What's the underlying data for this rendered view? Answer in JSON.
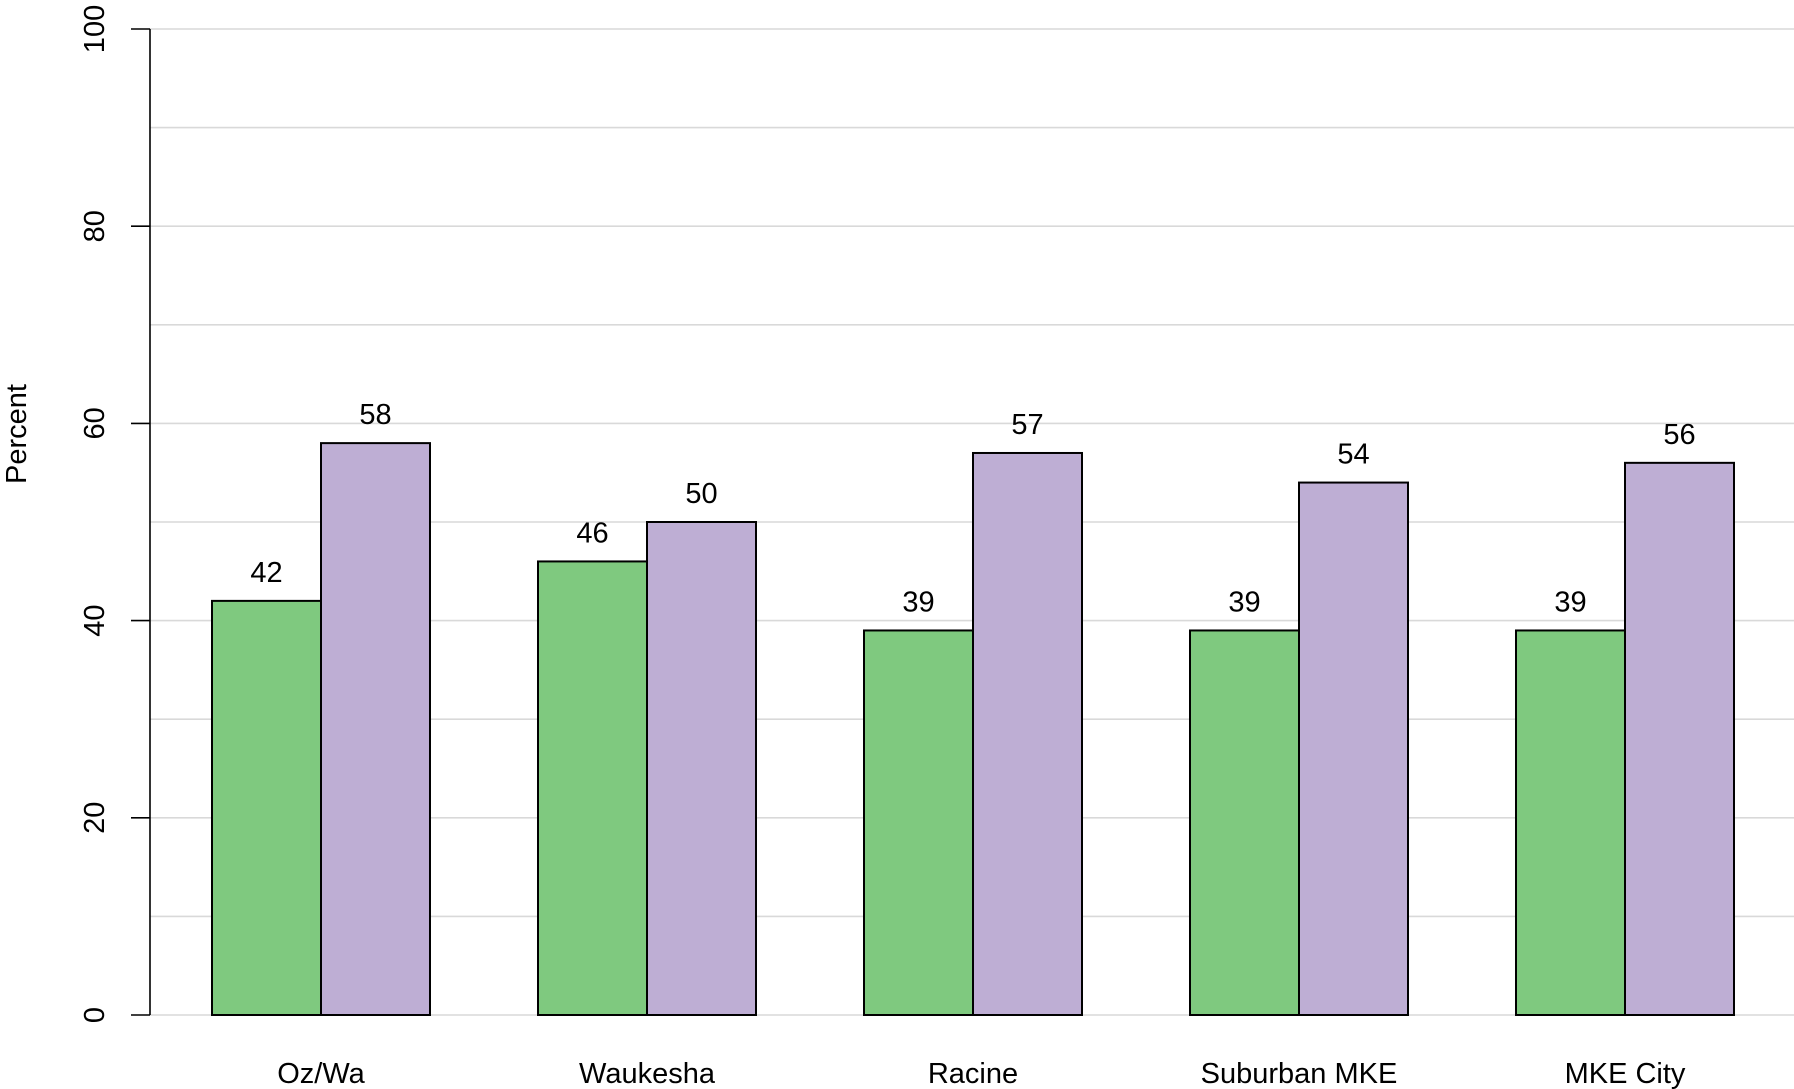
{
  "chart_data": {
    "type": "bar",
    "title": "",
    "xlabel": "",
    "ylabel": "Percent",
    "ylim": [
      0,
      100
    ],
    "yticks": [
      0,
      20,
      40,
      60,
      80,
      100
    ],
    "grid": true,
    "categories": [
      "Oz/Wa",
      "Waukesha",
      "Racine",
      "Suburban MKE",
      "MKE City"
    ],
    "series": [
      {
        "values": [
          42,
          46,
          39,
          39,
          39
        ],
        "color": "#7fc97f"
      },
      {
        "values": [
          58,
          50,
          57,
          54,
          56
        ],
        "color": "#beaed4"
      }
    ]
  }
}
